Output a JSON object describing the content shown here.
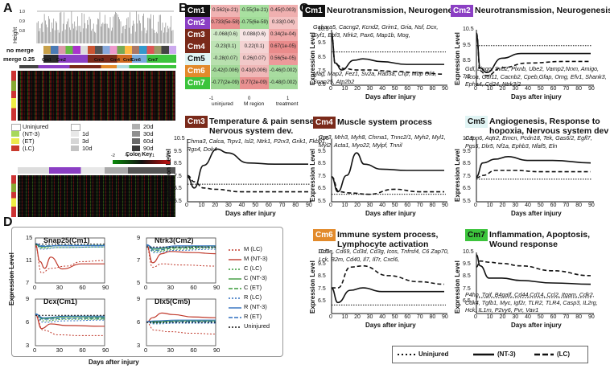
{
  "panels": {
    "a": "A",
    "b": "B",
    "c": "C",
    "d": "D"
  },
  "panelA": {
    "height_label": "Height",
    "no_merge": "no merge",
    "merge": "merge 0.25",
    "modules": [
      "Cm1",
      "Cm2",
      "Cm3",
      "Cm4",
      "Cm5",
      "Cm6",
      "Cm7"
    ],
    "legend_left": [
      "Uninjured",
      "(NT-3)",
      "(ET)",
      "(LC)"
    ],
    "legend_mid": [
      "1d",
      "3d",
      "10d"
    ],
    "legend_right": [
      "20d",
      "30d",
      "60d",
      "90d"
    ],
    "color_key": "Color Key",
    "color_key_ticks": [
      "-2",
      "-1",
      "0",
      "1",
      "2"
    ]
  },
  "panelB": {
    "rows": [
      {
        "label": "Cm1",
        "color": "#111111",
        "cells": [
          "0.562(e-21)",
          "-0.55(3e-21)",
          "0.45(0.003)"
        ]
      },
      {
        "label": "Cm2",
        "color": "#8b3fc4",
        "cells": [
          "0.733(5e-58)",
          "-0.75(6e-59)",
          "0.33(0.04)"
        ]
      },
      {
        "label": "Cm3",
        "color": "#7a2a1a",
        "cells": [
          "-0.068(0.6)",
          "0.088(0.6)",
          "0.34(2e-04)"
        ]
      },
      {
        "label": "Cm4",
        "color": "#7a2a1a",
        "cells": [
          "-0.23(0.1)",
          "0.22(0.1)",
          "0.67(1e-05)"
        ]
      },
      {
        "label": "Cm5",
        "color": "#e0f4f4",
        "cells": [
          "-0.28(0.07)",
          "0.26(0.07)",
          "0.56(5e-05)"
        ]
      },
      {
        "label": "Cm6",
        "color": "#e28a2b",
        "cells": [
          "-0.42(0.006)",
          "0.43(0.006)",
          "-0.46(0.002)"
        ]
      },
      {
        "label": "Cm7",
        "color": "#3cc43c",
        "cells": [
          "-0.77(2e-09)",
          "0.77(2e-09)",
          "-0.48(0.002)"
        ]
      }
    ],
    "cols": [
      "uninjured",
      "M region",
      "treatment"
    ],
    "scale": [
      "-1",
      "0",
      "1"
    ]
  },
  "panelC": {
    "xlabel": "Days after injury",
    "ylabel": "Expression Level",
    "xticks": [
      "0",
      "10",
      "20",
      "30",
      "40",
      "50",
      "60",
      "70",
      "80",
      "90"
    ],
    "plots": [
      {
        "id": "Cm1",
        "badge_color": "#111111",
        "badge_text_color": "#ffffff",
        "title": "Neurotransmission, Neurogenesis",
        "genes_top": "Gabara5, Cacng2, Kcnd2, Grim1, Gria, Nsf, Dcx, Syf1, Ebf3, Nfrk2, Pax6, Map1b, Mog,",
        "genes_bottom": "Mag, Map2, Fez1, Sv2a, Rab3a, Cnp, Mbp Oli1, Snap25, Atp2b2",
        "yticks": [
          "10.5",
          "9.5",
          "8.5",
          "7.5",
          "6.5"
        ]
      },
      {
        "id": "Cm2",
        "badge_color": "#8b3fc4",
        "badge_text_color": "#ffffff",
        "title": "Neurotransmission, Neurogenesis",
        "genes_bottom": "Gdl, Lingo, Svb2, Plxnb, Ube2, Vamp2,Nrxn, Amigo, Ncoa, Gdf11, Cacnb2, Cpeb,Gfap, Omg, Efv1, Shank3, Epha4, Cd24, Ntrk3/2",
        "yticks": [
          "10.5",
          "9.5",
          "8.5",
          "7.5"
        ]
      },
      {
        "id": "Cm3",
        "badge_color": "#7a2a1a",
        "badge_text_color": "#ffffff",
        "title": "Temperature & pain senses, Nervous system dev.",
        "genes_top": "Chrna3, Calca, Trpv1, Isl2, Ntrk1, P2rx3, Grik1, Fkbp1, Rgs4, Dok4",
        "yticks": [
          "10.5",
          "9.5",
          "8.5",
          "7.5",
          "6.5",
          "5.5"
        ]
      },
      {
        "id": "Cm4",
        "badge_color": "#7a2a1a",
        "badge_text_color": "#ffffff",
        "title": "Muscle system process",
        "genes_top": "Car3, Mrh3, Myh8, Chrna1, Tnnc2/1, Myh2, Myl1, Myl2, Acta1, Myo22, Mylpf, Tnnil",
        "yticks": [
          "10.5",
          "9.5",
          "8.5",
          "7.5",
          "6.5",
          "5.5"
        ]
      },
      {
        "id": "Cm5",
        "badge_color": "#e0f4f4",
        "badge_text_color": "#111111",
        "title": "Angiogenesis, Response to hopoxia, Nervous system dev",
        "genes_top": "Capn6, Aqtr2, Emcn, Pcdn18, Tek, Gas6/2, Egfl7, Pgs5, Dlx5, Nf1a, Ephb3, Nfaf5, Eln",
        "yticks": [
          "10.5",
          "9.5",
          "8.5",
          "7.5",
          "6.5",
          "5.5"
        ]
      },
      {
        "id": "Cm6",
        "badge_color": "#e28a2b",
        "badge_text_color": "#ffffff",
        "title": "Immune system process, Lymphocyte activation",
        "genes_top": "Cd3e, Cd69, Cd3d, Cd3g, Icos, Tnfrsf4, C6 Zap70, Lck, B2m, Cd40, Il7, Il7r, Cxcl6,",
        "yticks": [
          "10.5",
          "9.5",
          "8.5",
          "7.5",
          "6.5"
        ]
      },
      {
        "id": "Cm7",
        "badge_color": "#3cc43c",
        "badge_text_color": "#111111",
        "title": "Inflammation, Apoptosis, Wound response",
        "genes_bottom": "P4hb, Tgif, B4galf, Cd44,Cd14, Ccl2, Itgam, Cdk2, Cdk4, Tgfb1, Myc, Igf2r, TLR2, TLR4, Casp3, IL2rg, Hck, IL1rn, P2vy6, Pvr, Vav1",
        "yticks": [
          "10.5",
          "9.5",
          "8.5",
          "7.5",
          "6.5"
        ]
      }
    ],
    "legend": [
      "Uninjured",
      "(NT-3)",
      "(LC)"
    ]
  },
  "panelD": {
    "ylabel": "Expression Level",
    "xlabel": "Days after injury",
    "plots": [
      {
        "title": "Snap25(Cm1)",
        "yticks": [
          "15",
          "11",
          "7"
        ]
      },
      {
        "title": "Ntrk3(Cm2)",
        "yticks": [
          "9",
          "7",
          "5"
        ]
      },
      {
        "title": "Dcx(Cm1)",
        "yticks": [
          "9",
          "6",
          "3"
        ]
      },
      {
        "title": "Dlx5(Cm5)",
        "yticks": [
          "9",
          "6",
          "3"
        ]
      }
    ],
    "xticks": [
      "0",
      "30",
      "60",
      "90"
    ],
    "legend": [
      {
        "label": "M (LC)",
        "color": "#c0392b",
        "dash": "2,2"
      },
      {
        "label": "M (NT-3)",
        "color": "#c0392b",
        "dash": ""
      },
      {
        "label": "C (LC)",
        "color": "#3a9a3a",
        "dash": "2,2"
      },
      {
        "label": "C (NT-3)",
        "color": "#3a9a3a",
        "dash": ""
      },
      {
        "label": "C (ET)",
        "color": "#3a9a3a",
        "dash": "5,2"
      },
      {
        "label": "R (LC)",
        "color": "#2f6fbf",
        "dash": "2,2"
      },
      {
        "label": "R (NT-3)",
        "color": "#2f6fbf",
        "dash": ""
      },
      {
        "label": "R (ET)",
        "color": "#2f6fbf",
        "dash": "5,2"
      },
      {
        "label": "Uninjured",
        "color": "#111111",
        "dash": "2,2"
      }
    ]
  }
}
